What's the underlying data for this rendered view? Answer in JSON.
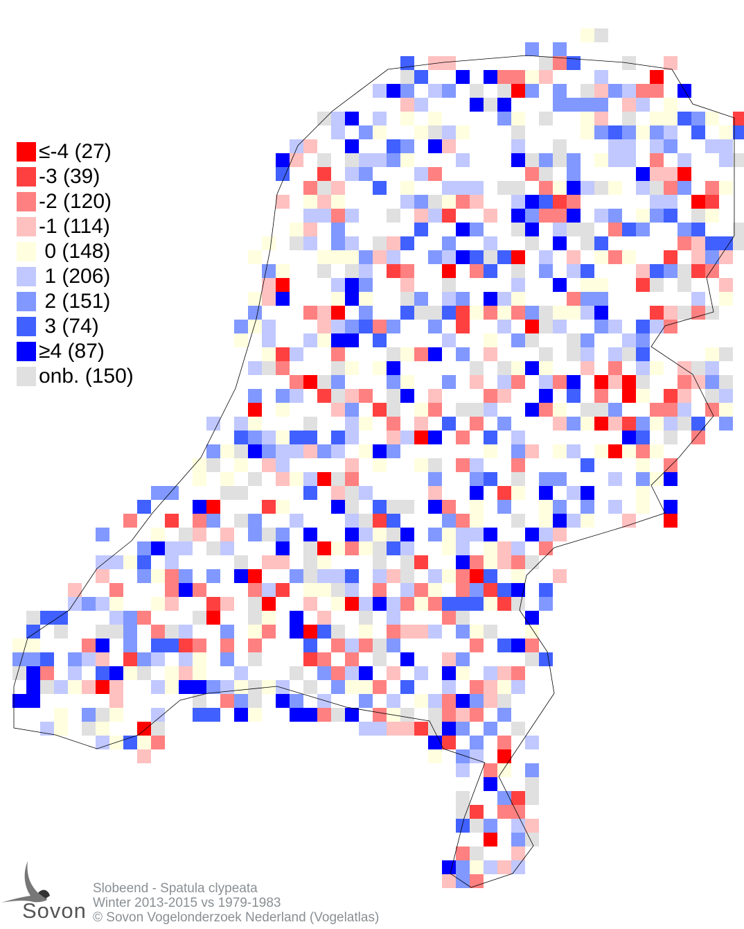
{
  "legend": [
    {
      "label": "≤-4 (27)",
      "color": "#ff0000"
    },
    {
      "label": "-3 (39)",
      "color": "#ff4040"
    },
    {
      "label": "-2 (120)",
      "color": "#ff8080"
    },
    {
      "label": "-1 (114)",
      "color": "#ffc0c0"
    },
    {
      "label": " 0 (148)",
      "color": "#ffffe0"
    },
    {
      "label": " 1 (206)",
      "color": "#c0c8ff"
    },
    {
      "label": " 2 (151)",
      "color": "#8098ff"
    },
    {
      "label": " 3 (74)",
      "color": "#4060ff"
    },
    {
      "label": "≥4 (87)",
      "color": "#0000ff"
    },
    {
      "label": "onb. (150)",
      "color": "#e0e0e0"
    }
  ],
  "caption": {
    "species": "Slobeend - Spatula clypeata",
    "period": "Winter 2013-2015 vs 1979-1983",
    "copyright": "© Sovon Vogelonderzoek Nederland (Vogelatlas)"
  },
  "logo": {
    "text": "Sovon"
  }
}
